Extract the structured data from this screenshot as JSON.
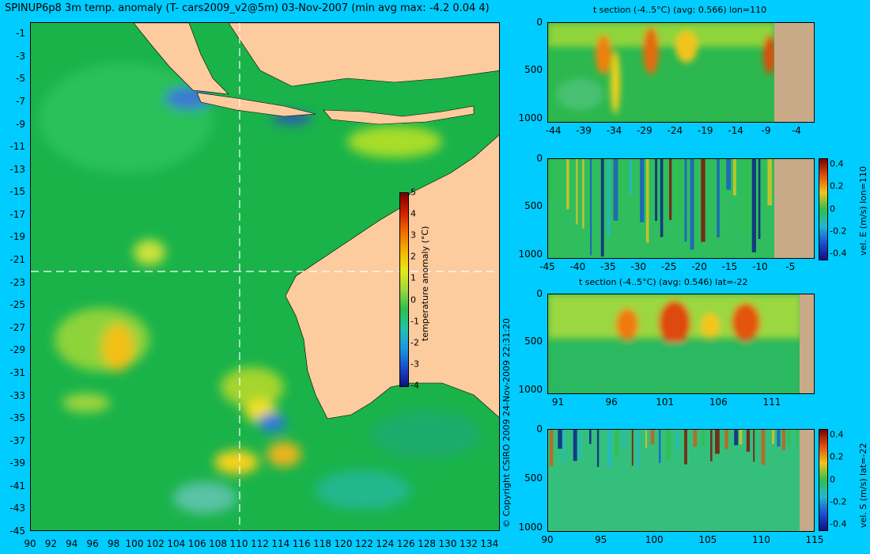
{
  "figure_title": "SPINUP6p8 3m temp. anomaly (T- cars2009_v2@5m) 03-Nov-2007 (min avg max: -4.2 0.04 4)",
  "copyright": "© Copyright CSIRO 2009   24-Nov-2009 22:31:20",
  "colors": {
    "background": "#00ccff",
    "land": "#fccb9e",
    "section_land": "#c8aa88",
    "ocean_base": "#19b34a"
  },
  "chart_data": [
    {
      "type": "heatmap",
      "title": "SPINUP6p8 3m temp. anomaly (T- cars2009_v2@5m) 03-Nov-2007 (min avg max: -4.2 0.04 4)",
      "x_ticks": [
        "90",
        "92",
        "94",
        "96",
        "98",
        "100",
        "102",
        "104",
        "106",
        "108",
        "110",
        "112",
        "114",
        "116",
        "118",
        "120",
        "122",
        "124",
        "126",
        "128",
        "130",
        "132",
        "134"
      ],
      "y_ticks": [
        "-1",
        "-3",
        "-5",
        "-7",
        "-9",
        "-11",
        "-13",
        "-15",
        "-17",
        "-19",
        "-21",
        "-23",
        "-25",
        "-27",
        "-29",
        "-31",
        "-33",
        "-35",
        "-37",
        "-39",
        "-41",
        "-43",
        "-45"
      ],
      "xlim": [
        90,
        135
      ],
      "ylim": [
        -45,
        0
      ],
      "section_lines": {
        "lon": 110,
        "lat": -22
      },
      "colorbar": {
        "label": "temperature anomaly (°C)",
        "ticks": [
          "5",
          "4",
          "3",
          "2",
          "1",
          "0",
          "-1",
          "-2",
          "-3",
          "-4"
        ],
        "range": [
          -4,
          5
        ]
      }
    },
    {
      "type": "heatmap",
      "title": "t section (-4..5°C) (avg: 0.566) lon=110",
      "x_ticks": [
        "-44",
        "-39",
        "-34",
        "-29",
        "-24",
        "-19",
        "-14",
        "-9",
        "-4"
      ],
      "y_ticks": [
        "0",
        "500",
        "1000"
      ],
      "xlim": [
        -45,
        -1
      ],
      "ylim": [
        1050,
        0
      ]
    },
    {
      "type": "heatmap",
      "title": "",
      "x_ticks": [
        "-45",
        "-40",
        "-35",
        "-30",
        "-25",
        "-20",
        "-15",
        "-10",
        "-5"
      ],
      "y_ticks": [
        "0",
        "500",
        "1000"
      ],
      "xlim": [
        -45,
        -1
      ],
      "ylim": [
        1050,
        0
      ],
      "colorbar": {
        "label": "vel. E (m/s) lon=110",
        "ticks": [
          "0.4",
          "0.2",
          "0",
          "-0.2",
          "-0.4"
        ],
        "range": [
          -0.45,
          0.45
        ]
      }
    },
    {
      "type": "heatmap",
      "title": "t section (-4..5°C) (avg: 0.546) lat=-22",
      "x_ticks": [
        "91",
        "96",
        "101",
        "106",
        "111"
      ],
      "y_ticks": [
        "0",
        "500",
        "1000"
      ],
      "xlim": [
        90,
        115
      ],
      "ylim": [
        1050,
        0
      ]
    },
    {
      "type": "heatmap",
      "title": "",
      "x_ticks": [
        "90",
        "95",
        "100",
        "105",
        "110",
        "115"
      ],
      "y_ticks": [
        "0",
        "500",
        "1000"
      ],
      "xlim": [
        90,
        115
      ],
      "ylim": [
        1050,
        0
      ],
      "colorbar": {
        "label": "vel. S (m/s) lat=-22",
        "ticks": [
          "0.4",
          "0.2",
          "0",
          "-0.2",
          "-0.4"
        ],
        "range": [
          -0.45,
          0.45
        ]
      }
    }
  ]
}
